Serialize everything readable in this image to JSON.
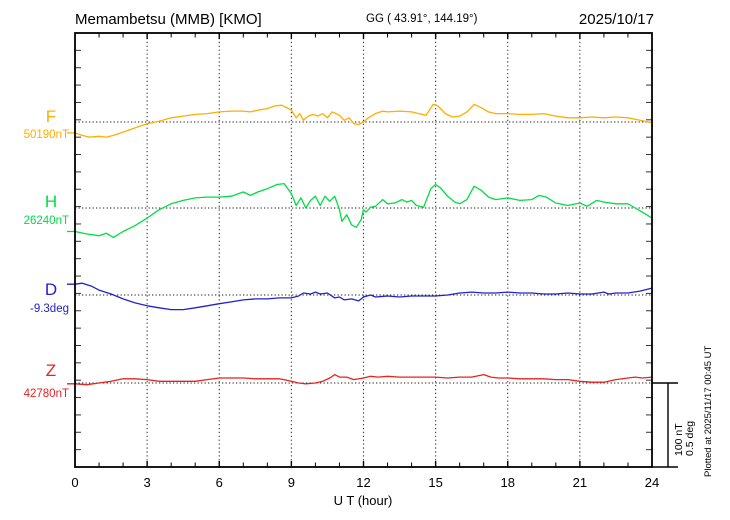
{
  "header": {
    "title": "Memambetsu (MMB)  [KMO]",
    "coordinates": "GG ( 43.91°, 144.19°)",
    "date": "2025/10/17"
  },
  "footer": {
    "xlabel": "U T (hour)"
  },
  "side": {
    "scale_label_nt": "100 nT",
    "scale_label_deg": "0.5 deg",
    "plotted_at": "Plotted at 2025/11/17 00:45 UT"
  },
  "chart_data": {
    "type": "line",
    "title": "Memambetsu (MMB) [KMO] magnetogram",
    "xlabel": "U T (hour)",
    "xlim": [
      0,
      24
    ],
    "x_ticks": [
      0,
      3,
      6,
      9,
      12,
      15,
      18,
      21,
      24
    ],
    "grid": "dotted vertical every 3 h, dotted baseline per trace",
    "scale_bar": {
      "nT": 100,
      "deg": 0.5
    },
    "series": [
      {
        "name": "F",
        "unit": "nT",
        "baseline": 50190,
        "baseline_label": "50190nT",
        "color": "#FFAD00",
        "points": [
          [
            0,
            50177
          ],
          [
            0.3,
            50174
          ],
          [
            0.6,
            50172
          ],
          [
            1,
            50173
          ],
          [
            1.3,
            50172
          ],
          [
            1.6,
            50174
          ],
          [
            2,
            50178
          ],
          [
            2.5,
            50183
          ],
          [
            3,
            50188
          ],
          [
            3.5,
            50191
          ],
          [
            4,
            50195
          ],
          [
            4.5,
            50197
          ],
          [
            5,
            50199
          ],
          [
            5.5,
            50200
          ],
          [
            6,
            50202
          ],
          [
            6.5,
            50203
          ],
          [
            7,
            50203
          ],
          [
            7.3,
            50202
          ],
          [
            7.6,
            50204
          ],
          [
            8,
            50206
          ],
          [
            8.3,
            50209
          ],
          [
            8.6,
            50210
          ],
          [
            9,
            50204
          ],
          [
            9.2,
            50195
          ],
          [
            9.35,
            50200
          ],
          [
            9.5,
            50192
          ],
          [
            9.7,
            50197
          ],
          [
            9.9,
            50199
          ],
          [
            10.1,
            50197
          ],
          [
            10.3,
            50200
          ],
          [
            10.5,
            50195
          ],
          [
            10.7,
            50202
          ],
          [
            11,
            50198
          ],
          [
            11.2,
            50192
          ],
          [
            11.4,
            50195
          ],
          [
            11.6,
            50188
          ],
          [
            11.8,
            50187
          ],
          [
            12,
            50190
          ],
          [
            12.2,
            50195
          ],
          [
            12.5,
            50200
          ],
          [
            12.8,
            50203
          ],
          [
            13,
            50202
          ],
          [
            13.5,
            50203
          ],
          [
            14,
            50202
          ],
          [
            14.3,
            50200
          ],
          [
            14.6,
            50198
          ],
          [
            14.9,
            50211
          ],
          [
            15.1,
            50209
          ],
          [
            15.4,
            50200
          ],
          [
            15.7,
            50196
          ],
          [
            16,
            50197
          ],
          [
            16.3,
            50202
          ],
          [
            16.6,
            50211
          ],
          [
            16.9,
            50207
          ],
          [
            17.2,
            50202
          ],
          [
            17.5,
            50200
          ],
          [
            18,
            50200
          ],
          [
            18.5,
            50199
          ],
          [
            19,
            50199
          ],
          [
            19.5,
            50200
          ],
          [
            20,
            50197
          ],
          [
            20.5,
            50195
          ],
          [
            21,
            50195
          ],
          [
            21.5,
            50196
          ],
          [
            22,
            50195
          ],
          [
            22.5,
            50196
          ],
          [
            23,
            50195
          ],
          [
            23.5,
            50192
          ],
          [
            24,
            50189
          ]
        ]
      },
      {
        "name": "H",
        "unit": "nT",
        "baseline": 26240,
        "baseline_label": "26240nT",
        "color": "#00DD44",
        "points": [
          [
            0,
            26212
          ],
          [
            0.5,
            26209
          ],
          [
            1,
            26207
          ],
          [
            1.3,
            26210
          ],
          [
            1.6,
            26205
          ],
          [
            2,
            26212
          ],
          [
            2.5,
            26219
          ],
          [
            3,
            26228
          ],
          [
            3.5,
            26238
          ],
          [
            4,
            26245
          ],
          [
            4.5,
            26249
          ],
          [
            5,
            26252
          ],
          [
            5.5,
            26253
          ],
          [
            6,
            26253
          ],
          [
            6.5,
            26254
          ],
          [
            7,
            26259
          ],
          [
            7.3,
            26255
          ],
          [
            7.6,
            26259
          ],
          [
            8,
            26263
          ],
          [
            8.4,
            26268
          ],
          [
            8.7,
            26269
          ],
          [
            9,
            26257
          ],
          [
            9.2,
            26243
          ],
          [
            9.4,
            26252
          ],
          [
            9.6,
            26240
          ],
          [
            9.8,
            26249
          ],
          [
            10,
            26254
          ],
          [
            10.2,
            26243
          ],
          [
            10.4,
            26254
          ],
          [
            10.6,
            26248
          ],
          [
            10.8,
            26254
          ],
          [
            11,
            26238
          ],
          [
            11.1,
            26224
          ],
          [
            11.3,
            26232
          ],
          [
            11.5,
            26220
          ],
          [
            11.7,
            26217
          ],
          [
            11.9,
            26226
          ],
          [
            12,
            26238
          ],
          [
            12.1,
            26235
          ],
          [
            12.3,
            26241
          ],
          [
            12.5,
            26242
          ],
          [
            12.8,
            26250
          ],
          [
            13,
            26245
          ],
          [
            13.3,
            26246
          ],
          [
            13.6,
            26250
          ],
          [
            13.8,
            26247
          ],
          [
            14,
            26249
          ],
          [
            14.2,
            26243
          ],
          [
            14.5,
            26241
          ],
          [
            14.8,
            26263
          ],
          [
            15,
            26268
          ],
          [
            15.2,
            26264
          ],
          [
            15.5,
            26254
          ],
          [
            15.8,
            26247
          ],
          [
            16,
            26245
          ],
          [
            16.3,
            26250
          ],
          [
            16.6,
            26266
          ],
          [
            16.9,
            26261
          ],
          [
            17.2,
            26253
          ],
          [
            17.5,
            26250
          ],
          [
            18,
            26252
          ],
          [
            18.5,
            26249
          ],
          [
            19,
            26250
          ],
          [
            19.3,
            26255
          ],
          [
            19.6,
            26253
          ],
          [
            20,
            26246
          ],
          [
            20.5,
            26243
          ],
          [
            21,
            26246
          ],
          [
            21.3,
            26242
          ],
          [
            21.7,
            26249
          ],
          [
            22,
            26247
          ],
          [
            22.5,
            26245
          ],
          [
            23,
            26245
          ],
          [
            23.3,
            26240
          ],
          [
            23.6,
            26235
          ],
          [
            24,
            26228
          ]
        ]
      },
      {
        "name": "D",
        "unit": "deg",
        "baseline": -9.3,
        "baseline_label": "-9.3deg",
        "color": "#2222CC",
        "points": [
          [
            0,
            -9.236
          ],
          [
            0.3,
            -9.23
          ],
          [
            0.7,
            -9.248
          ],
          [
            1,
            -9.271
          ],
          [
            1.5,
            -9.294
          ],
          [
            2,
            -9.323
          ],
          [
            2.5,
            -9.347
          ],
          [
            3,
            -9.364
          ],
          [
            3.5,
            -9.376
          ],
          [
            4,
            -9.387
          ],
          [
            4.5,
            -9.387
          ],
          [
            5,
            -9.376
          ],
          [
            5.5,
            -9.364
          ],
          [
            6,
            -9.352
          ],
          [
            6.5,
            -9.341
          ],
          [
            7,
            -9.329
          ],
          [
            7.5,
            -9.323
          ],
          [
            8,
            -9.323
          ],
          [
            8.5,
            -9.317
          ],
          [
            9,
            -9.317
          ],
          [
            9.3,
            -9.306
          ],
          [
            9.5,
            -9.288
          ],
          [
            9.8,
            -9.294
          ],
          [
            10,
            -9.283
          ],
          [
            10.2,
            -9.294
          ],
          [
            10.5,
            -9.288
          ],
          [
            10.8,
            -9.317
          ],
          [
            11,
            -9.312
          ],
          [
            11.2,
            -9.329
          ],
          [
            11.5,
            -9.323
          ],
          [
            11.8,
            -9.335
          ],
          [
            12,
            -9.312
          ],
          [
            12.3,
            -9.3
          ],
          [
            12.5,
            -9.312
          ],
          [
            13,
            -9.306
          ],
          [
            13.5,
            -9.312
          ],
          [
            14,
            -9.306
          ],
          [
            15,
            -9.306
          ],
          [
            15.5,
            -9.3
          ],
          [
            16,
            -9.288
          ],
          [
            16.5,
            -9.283
          ],
          [
            17,
            -9.288
          ],
          [
            17.5,
            -9.288
          ],
          [
            18,
            -9.283
          ],
          [
            18.5,
            -9.288
          ],
          [
            19,
            -9.288
          ],
          [
            19.5,
            -9.294
          ],
          [
            20,
            -9.294
          ],
          [
            20.5,
            -9.288
          ],
          [
            21,
            -9.294
          ],
          [
            21.5,
            -9.294
          ],
          [
            22,
            -9.283
          ],
          [
            22.2,
            -9.294
          ],
          [
            22.5,
            -9.288
          ],
          [
            23,
            -9.288
          ],
          [
            23.5,
            -9.277
          ],
          [
            24,
            -9.259
          ]
        ]
      },
      {
        "name": "Z",
        "unit": "nT",
        "baseline": 42780,
        "baseline_label": "42780nT",
        "color": "#E62222",
        "points": [
          [
            0,
            42779
          ],
          [
            0.5,
            42778
          ],
          [
            1,
            42780
          ],
          [
            1.5,
            42782
          ],
          [
            2,
            42785
          ],
          [
            2.5,
            42785
          ],
          [
            3,
            42784
          ],
          [
            3.5,
            42782
          ],
          [
            4,
            42782
          ],
          [
            5,
            42782
          ],
          [
            5.5,
            42784
          ],
          [
            6,
            42786
          ],
          [
            6.5,
            42786
          ],
          [
            7,
            42786
          ],
          [
            7.5,
            42785
          ],
          [
            8,
            42785
          ],
          [
            8.5,
            42785
          ],
          [
            9,
            42782
          ],
          [
            9.3,
            42780
          ],
          [
            9.6,
            42779
          ],
          [
            10,
            42780
          ],
          [
            10.3,
            42782
          ],
          [
            10.6,
            42786
          ],
          [
            10.8,
            42790
          ],
          [
            11,
            42787
          ],
          [
            11.3,
            42787
          ],
          [
            11.6,
            42784
          ],
          [
            12,
            42786
          ],
          [
            12.3,
            42788
          ],
          [
            12.6,
            42787
          ],
          [
            13,
            42788
          ],
          [
            13.5,
            42787
          ],
          [
            14,
            42787
          ],
          [
            14.5,
            42787
          ],
          [
            15,
            42787
          ],
          [
            15.5,
            42786
          ],
          [
            16,
            42787
          ],
          [
            16.5,
            42787
          ],
          [
            17,
            42790
          ],
          [
            17.3,
            42787
          ],
          [
            17.6,
            42786
          ],
          [
            18,
            42786
          ],
          [
            18.5,
            42785
          ],
          [
            19,
            42785
          ],
          [
            19.5,
            42785
          ],
          [
            20,
            42784
          ],
          [
            20.5,
            42784
          ],
          [
            21,
            42782
          ],
          [
            21.5,
            42781
          ],
          [
            22,
            42781
          ],
          [
            22.5,
            42784
          ],
          [
            23,
            42786
          ],
          [
            23.3,
            42787
          ],
          [
            23.6,
            42786
          ],
          [
            24,
            42787
          ]
        ]
      }
    ]
  }
}
